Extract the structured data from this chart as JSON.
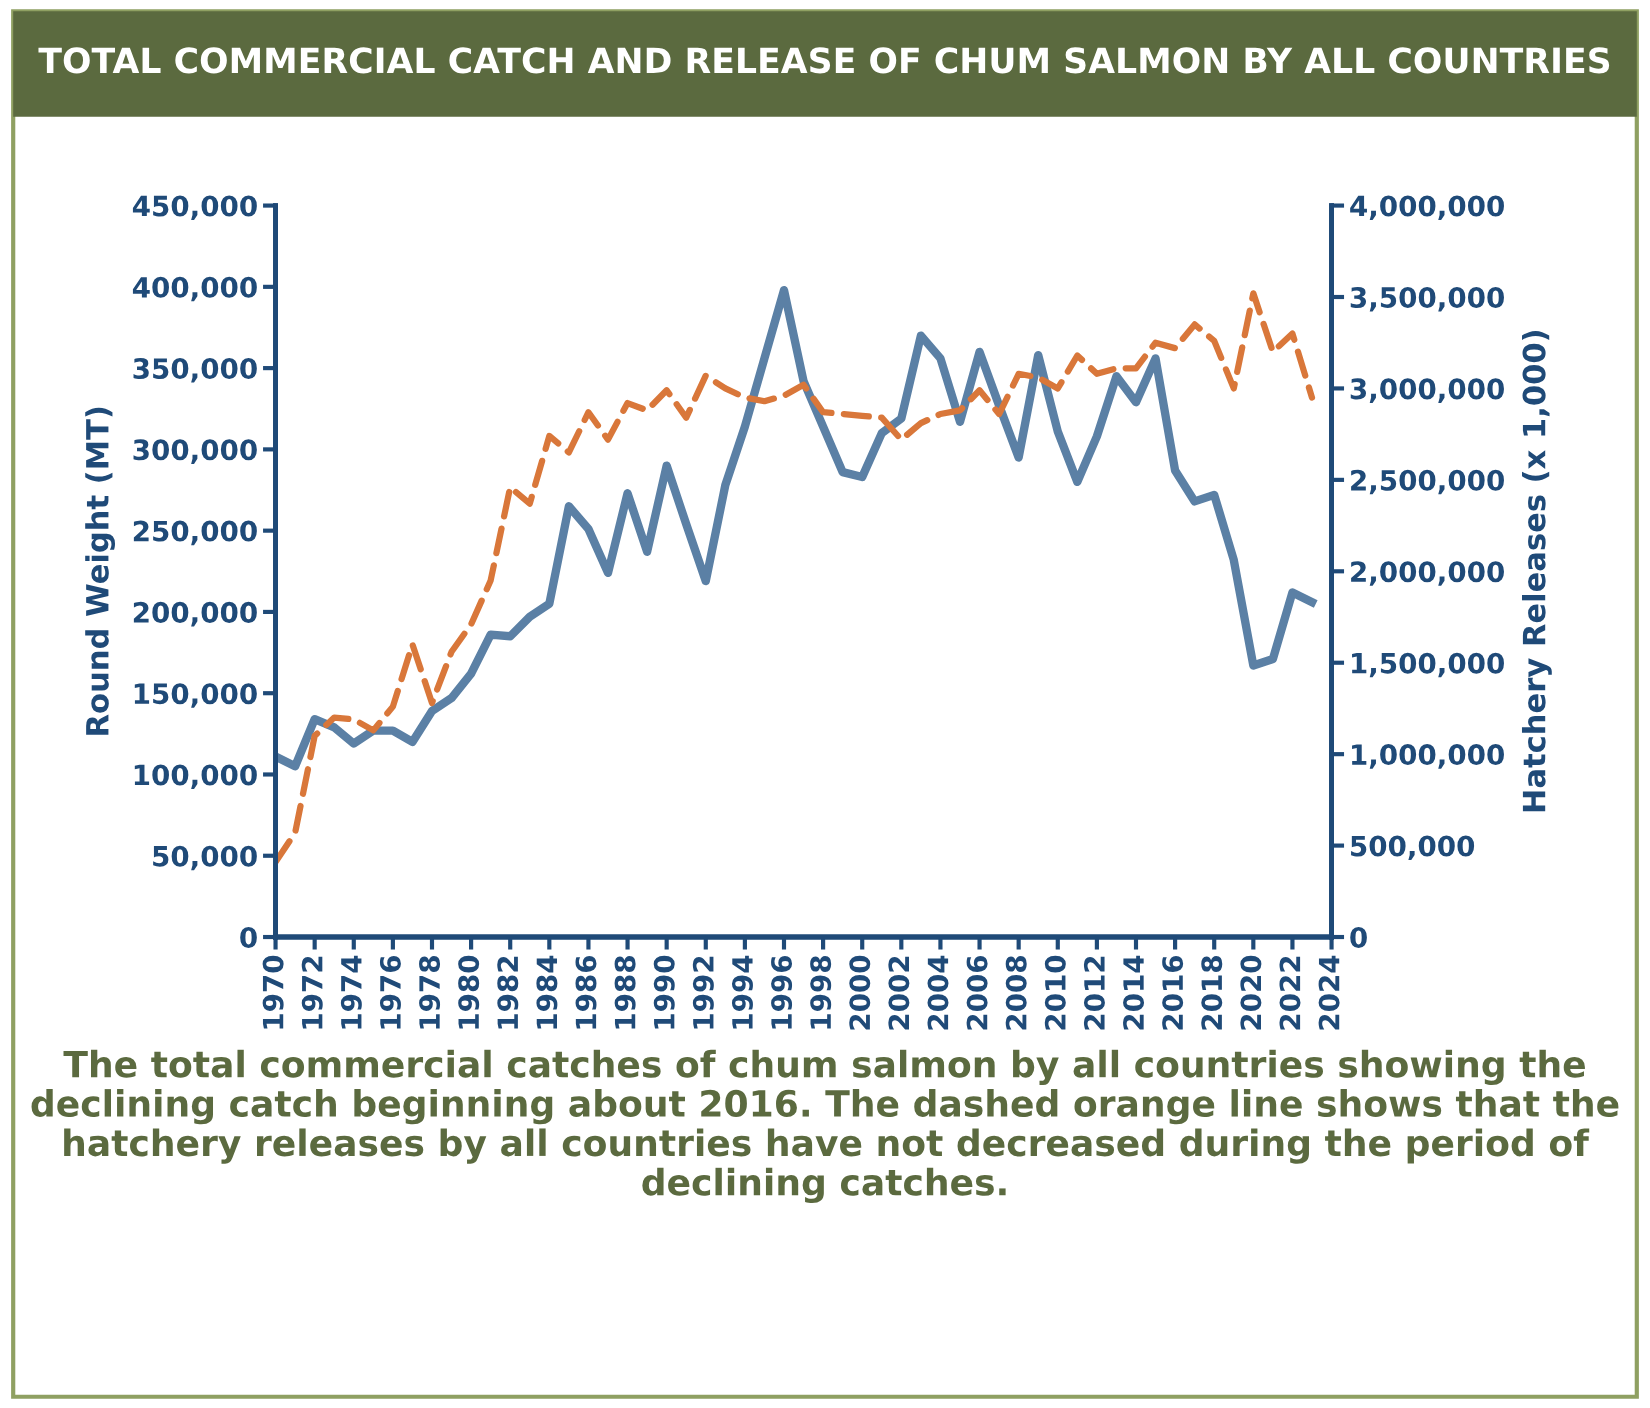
{
  "chart_data": {
    "type": "line",
    "title": "TOTAL COMMERCIAL CATCH AND RELEASE OF CHUM SALMON BY ALL COUNTRIES",
    "ylabel": "Round Weight (MT)",
    "y2label": "Hatchery Releases (x 1,000)",
    "annotations": [
      "The total commercial catches of chum salmon by all countries showing the declining catch beginning about 2016. The dashed orange line shows that the hatchery releases by all countries have not decreased during the period of declining catches."
    ],
    "x": [
      1970,
      1971,
      1972,
      1973,
      1974,
      1975,
      1976,
      1977,
      1978,
      1979,
      1980,
      1981,
      1982,
      1983,
      1984,
      1985,
      1986,
      1987,
      1988,
      1989,
      1990,
      1991,
      1992,
      1993,
      1994,
      1995,
      1996,
      1997,
      1998,
      1999,
      2000,
      2001,
      2002,
      2003,
      2004,
      2005,
      2006,
      2007,
      2008,
      2009,
      2010,
      2011,
      2012,
      2013,
      2014,
      2015,
      2016,
      2017,
      2018,
      2019,
      2020,
      2021,
      2022,
      2023
    ],
    "series": [
      {
        "color": "#5b80a5",
        "line_style": "solid",
        "values": [
          111000,
          105000,
          134000,
          129000,
          119000,
          127000,
          127000,
          120000,
          139000,
          147000,
          162000,
          186000,
          185000,
          197000,
          205000,
          265000,
          251000,
          224000,
          273000,
          237000,
          290000,
          254000,
          219000,
          278000,
          314000,
          356000,
          398000,
          342000,
          314000,
          286000,
          283000,
          310000,
          319000,
          370000,
          356000,
          317000,
          360000,
          327000,
          295000,
          358000,
          311000,
          280000,
          308000,
          345000,
          329000,
          356000,
          287000,
          268000,
          272000,
          232000,
          167000,
          171000,
          212000,
          206000
        ]
      },
      {
        "color": "#d9773a",
        "line_style": "dashed",
        "axis": "y2",
        "values": [
          410000,
          570000,
          1100000,
          1200000,
          1190000,
          1130000,
          1260000,
          1600000,
          1280000,
          1560000,
          1710000,
          1950000,
          2460000,
          2370000,
          2740000,
          2650000,
          2870000,
          2720000,
          2920000,
          2880000,
          2990000,
          2840000,
          3070000,
          3000000,
          2950000,
          2930000,
          2960000,
          3020000,
          2870000,
          2860000,
          2850000,
          2840000,
          2720000,
          2810000,
          2860000,
          2880000,
          2990000,
          2860000,
          3080000,
          3060000,
          3000000,
          3180000,
          3080000,
          3110000,
          3110000,
          3250000,
          3220000,
          3350000,
          3260000,
          3000000,
          3520000,
          3200000,
          3300000,
          2950000
        ]
      }
    ],
    "xlim": [
      1970,
      2024
    ],
    "xticks": [
      1970,
      1972,
      1974,
      1976,
      1978,
      1980,
      1982,
      1984,
      1986,
      1988,
      1990,
      1992,
      1994,
      1996,
      1998,
      2000,
      2002,
      2004,
      2006,
      2008,
      2010,
      2012,
      2014,
      2016,
      2018,
      2020,
      2022,
      2024
    ],
    "ylim": [
      0,
      450000
    ],
    "yticks": [
      {
        "value": 0,
        "label": "0"
      },
      {
        "value": 50000,
        "label": "50,000"
      },
      {
        "value": 100000,
        "label": "100,000"
      },
      {
        "value": 150000,
        "label": "150,000"
      },
      {
        "value": 200000,
        "label": "200,000"
      },
      {
        "value": 250000,
        "label": "250,000"
      },
      {
        "value": 300000,
        "label": "300,000"
      },
      {
        "value": 350000,
        "label": "350,000"
      },
      {
        "value": 400000,
        "label": "400,000"
      },
      {
        "value": 450000,
        "label": "450,000"
      }
    ],
    "y2lim": [
      0,
      4000000
    ],
    "y2ticks": [
      {
        "value": 0,
        "label": "0"
      },
      {
        "value": 500000,
        "label": "500,000"
      },
      {
        "value": 1000000,
        "label": "1,000,000"
      },
      {
        "value": 1500000,
        "label": "1,500,000"
      },
      {
        "value": 2000000,
        "label": "2,000,000"
      },
      {
        "value": 2500000,
        "label": "2,500,000"
      },
      {
        "value": 3000000,
        "label": "3,000,000"
      },
      {
        "value": 3500000,
        "label": "3,500,000"
      },
      {
        "value": 4000000,
        "label": "4,000,000"
      }
    ],
    "grid": false,
    "legend": false,
    "marker": "none"
  }
}
